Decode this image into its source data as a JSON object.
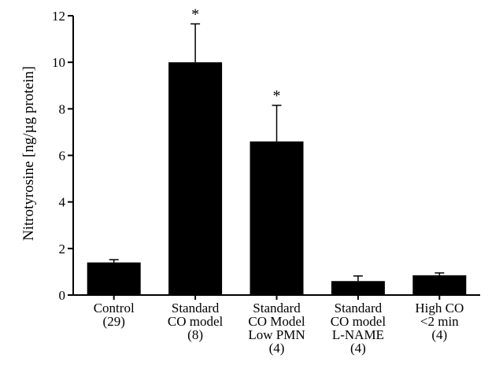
{
  "chart_data": {
    "type": "bar",
    "title": "",
    "xlabel": "",
    "ylabel": "Nitrotyrosine [ng/µg protein]",
    "ylim": [
      0,
      12
    ],
    "yticks": [
      0,
      2,
      4,
      6,
      8,
      10,
      12
    ],
    "grid": false,
    "categories": [
      [
        "Control",
        "(29)"
      ],
      [
        "Standard",
        "CO model",
        "(8)"
      ],
      [
        "Standard",
        "CO Model",
        "Low PMN",
        "(4)"
      ],
      [
        "Standard",
        "CO model",
        "L-NAME",
        "(4)"
      ],
      [
        "High CO",
        "<2 min",
        "(4)"
      ]
    ],
    "values": [
      1.4,
      10.0,
      6.6,
      0.6,
      0.85
    ],
    "errors": [
      0.12,
      1.65,
      1.55,
      0.22,
      0.1
    ],
    "annotations": [
      "",
      "*",
      "*",
      "",
      ""
    ],
    "bar_color": "#000000"
  }
}
